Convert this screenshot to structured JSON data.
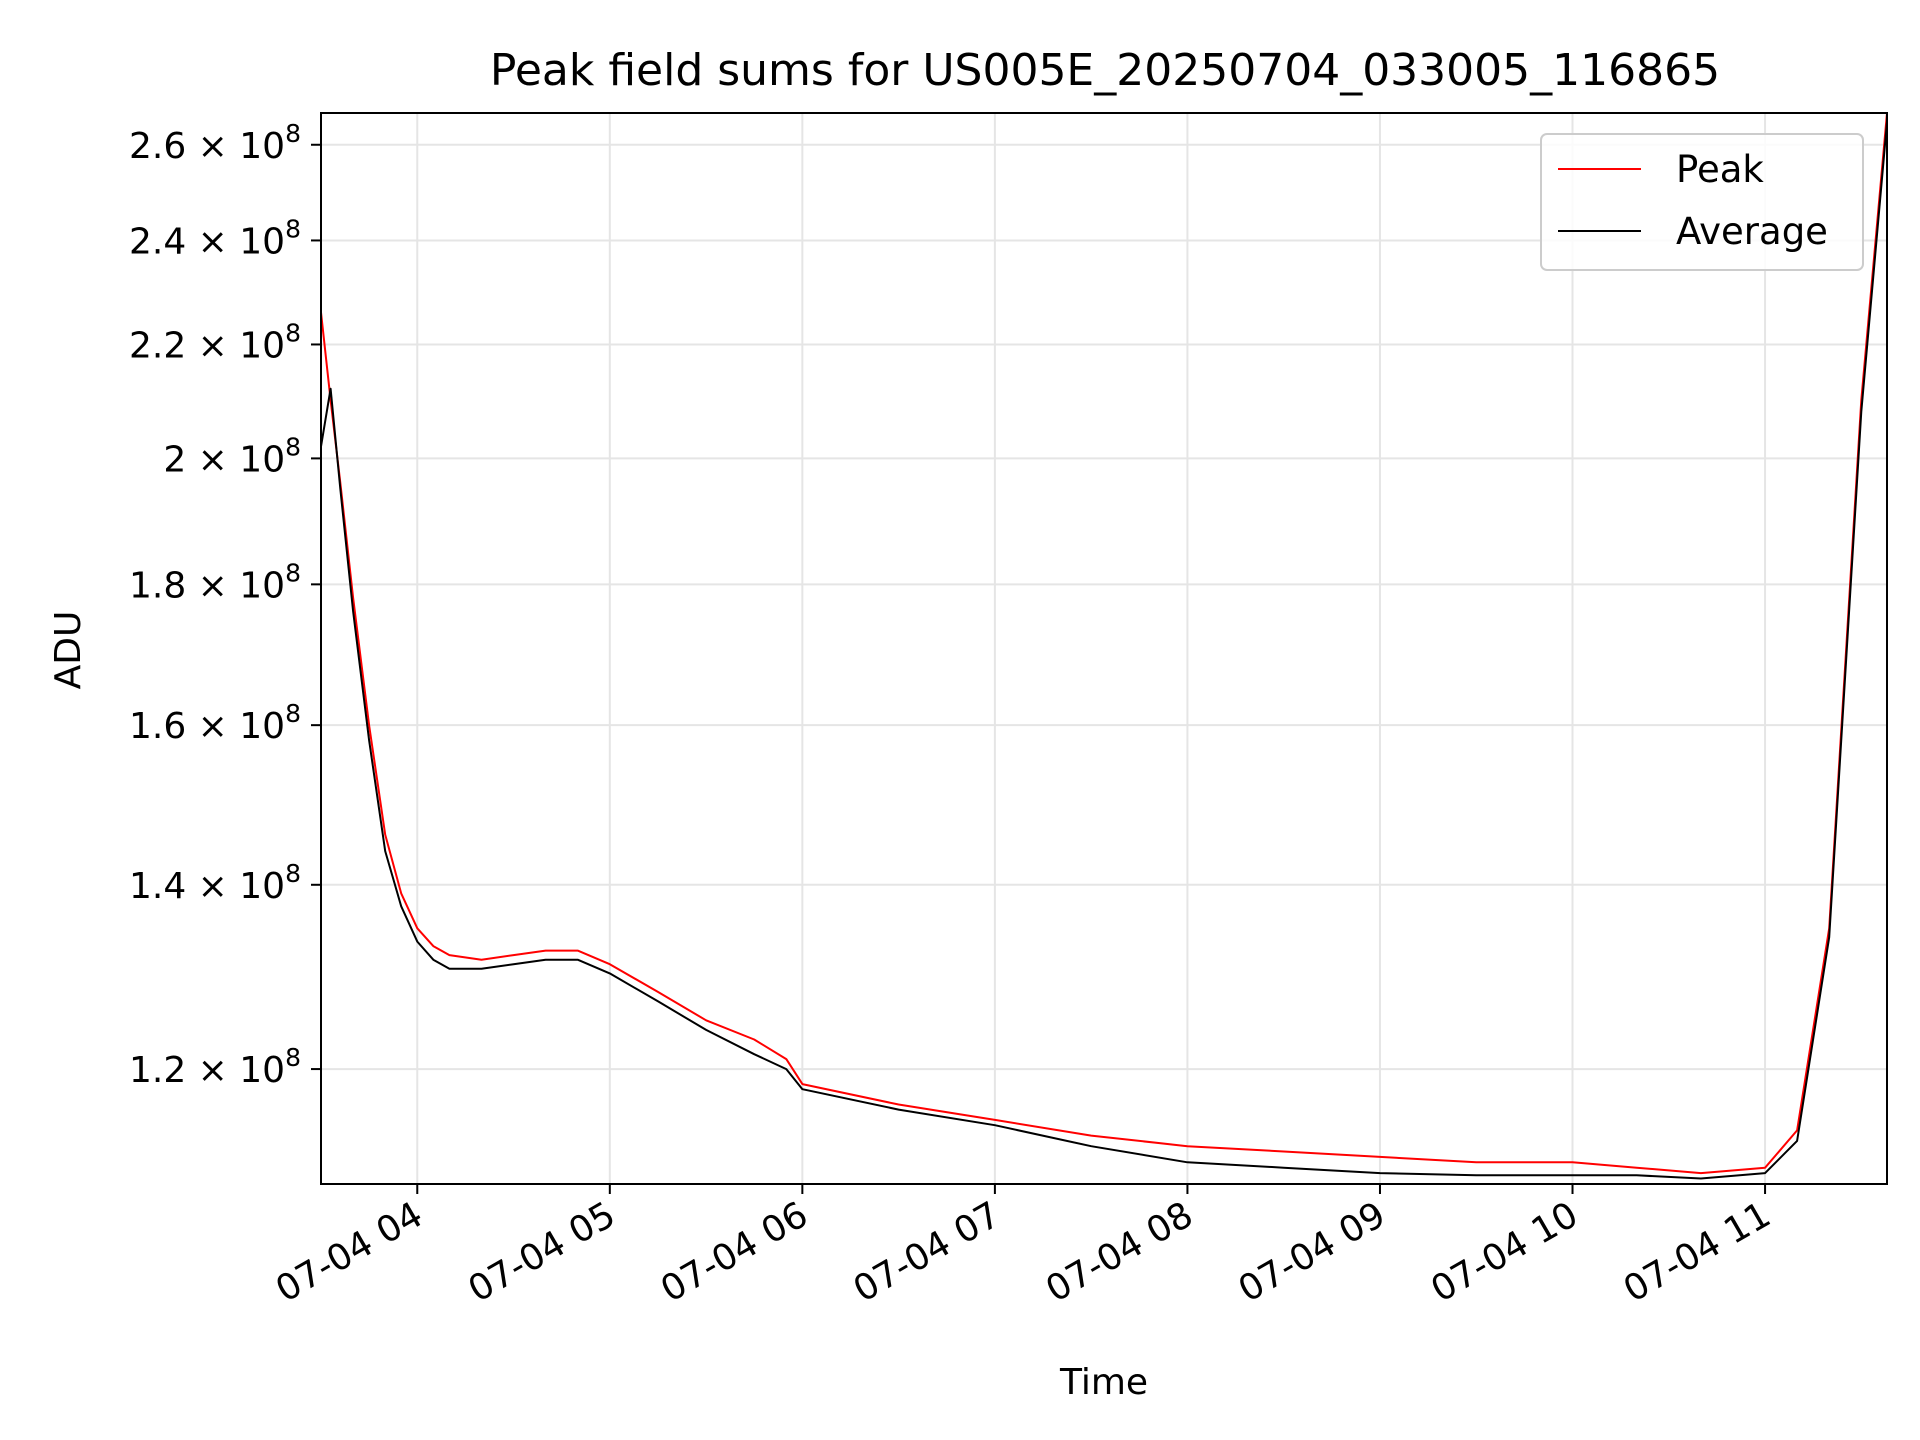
{
  "chart_data": {
    "type": "line",
    "title": "Peak field sums for US005E_20250704_033005_116865",
    "xlabel": "Time",
    "ylabel": "ADU",
    "yscale": "log",
    "xlim": [
      "07-04 03:30",
      "07-04 11:38"
    ],
    "ylim": [
      109000000,
      267000000
    ],
    "grid": true,
    "legend_position": "top-right",
    "x_ticks": [
      "07-04 04",
      "07-04 05",
      "07-04 06",
      "07-04 07",
      "07-04 08",
      "07-04 09",
      "07-04 10",
      "07-04 11"
    ],
    "x_tick_times": [
      "07-04 04:00",
      "07-04 05:00",
      "07-04 06:00",
      "07-04 07:00",
      "07-04 08:00",
      "07-04 09:00",
      "07-04 10:00",
      "07-04 11:00"
    ],
    "y_ticks": [
      {
        "value": 120000000,
        "mantissa": "1.2",
        "exp": "8"
      },
      {
        "value": 140000000,
        "mantissa": "1.4",
        "exp": "8"
      },
      {
        "value": 160000000,
        "mantissa": "1.6",
        "exp": "8"
      },
      {
        "value": 180000000,
        "mantissa": "1.8",
        "exp": "8"
      },
      {
        "value": 200000000,
        "mantissa": "2",
        "exp": "8"
      },
      {
        "value": 220000000,
        "mantissa": "2.2",
        "exp": "8"
      },
      {
        "value": 240000000,
        "mantissa": "2.4",
        "exp": "8"
      },
      {
        "value": 260000000,
        "mantissa": "2.6",
        "exp": "8"
      }
    ],
    "series": [
      {
        "name": "Peak",
        "color": "#ff0000",
        "x": [
          "07-04 03:30",
          "07-04 03:33",
          "07-04 03:36",
          "07-04 03:40",
          "07-04 03:45",
          "07-04 03:50",
          "07-04 03:55",
          "07-04 04:00",
          "07-04 04:05",
          "07-04 04:10",
          "07-04 04:20",
          "07-04 04:30",
          "07-04 04:40",
          "07-04 04:50",
          "07-04 05:00",
          "07-04 05:15",
          "07-04 05:30",
          "07-04 05:45",
          "07-04 05:55",
          "07-04 06:00",
          "07-04 06:30",
          "07-04 07:00",
          "07-04 07:30",
          "07-04 08:00",
          "07-04 08:30",
          "07-04 09:00",
          "07-04 09:30",
          "07-04 10:00",
          "07-04 10:20",
          "07-04 10:40",
          "07-04 11:00",
          "07-04 11:10",
          "07-04 11:20",
          "07-04 11:30",
          "07-04 11:38"
        ],
        "values": [
          226000000,
          210000000,
          196000000,
          178000000,
          160000000,
          146000000,
          139000000,
          135000000,
          133000000,
          132000000,
          131500000,
          132000000,
          132500000,
          132500000,
          131000000,
          128000000,
          125000000,
          123000000,
          121000000,
          118500000,
          116500000,
          115000000,
          113500000,
          112500000,
          112000000,
          111500000,
          111000000,
          111000000,
          110500000,
          110000000,
          110500000,
          114000000,
          135000000,
          210000000,
          267000000
        ]
      },
      {
        "name": "Average",
        "color": "#000000",
        "x": [
          "07-04 03:30",
          "07-04 03:33",
          "07-04 03:36",
          "07-04 03:40",
          "07-04 03:45",
          "07-04 03:50",
          "07-04 03:55",
          "07-04 04:00",
          "07-04 04:05",
          "07-04 04:10",
          "07-04 04:20",
          "07-04 04:30",
          "07-04 04:40",
          "07-04 04:50",
          "07-04 05:00",
          "07-04 05:15",
          "07-04 05:30",
          "07-04 05:45",
          "07-04 05:55",
          "07-04 06:00",
          "07-04 06:30",
          "07-04 07:00",
          "07-04 07:30",
          "07-04 08:00",
          "07-04 08:30",
          "07-04 09:00",
          "07-04 09:30",
          "07-04 10:00",
          "07-04 10:20",
          "07-04 10:40",
          "07-04 11:00",
          "07-04 11:10",
          "07-04 11:20",
          "07-04 11:30",
          "07-04 11:38"
        ],
        "values": [
          202000000,
          212000000,
          195000000,
          176000000,
          158000000,
          144000000,
          137500000,
          133500000,
          131500000,
          130500000,
          130500000,
          131000000,
          131500000,
          131500000,
          130000000,
          127000000,
          124000000,
          121500000,
          120000000,
          118000000,
          116000000,
          114500000,
          112500000,
          111000000,
          110500000,
          110000000,
          109800000,
          109800000,
          109800000,
          109500000,
          110000000,
          113000000,
          134000000,
          208000000,
          265000000
        ]
      }
    ]
  }
}
